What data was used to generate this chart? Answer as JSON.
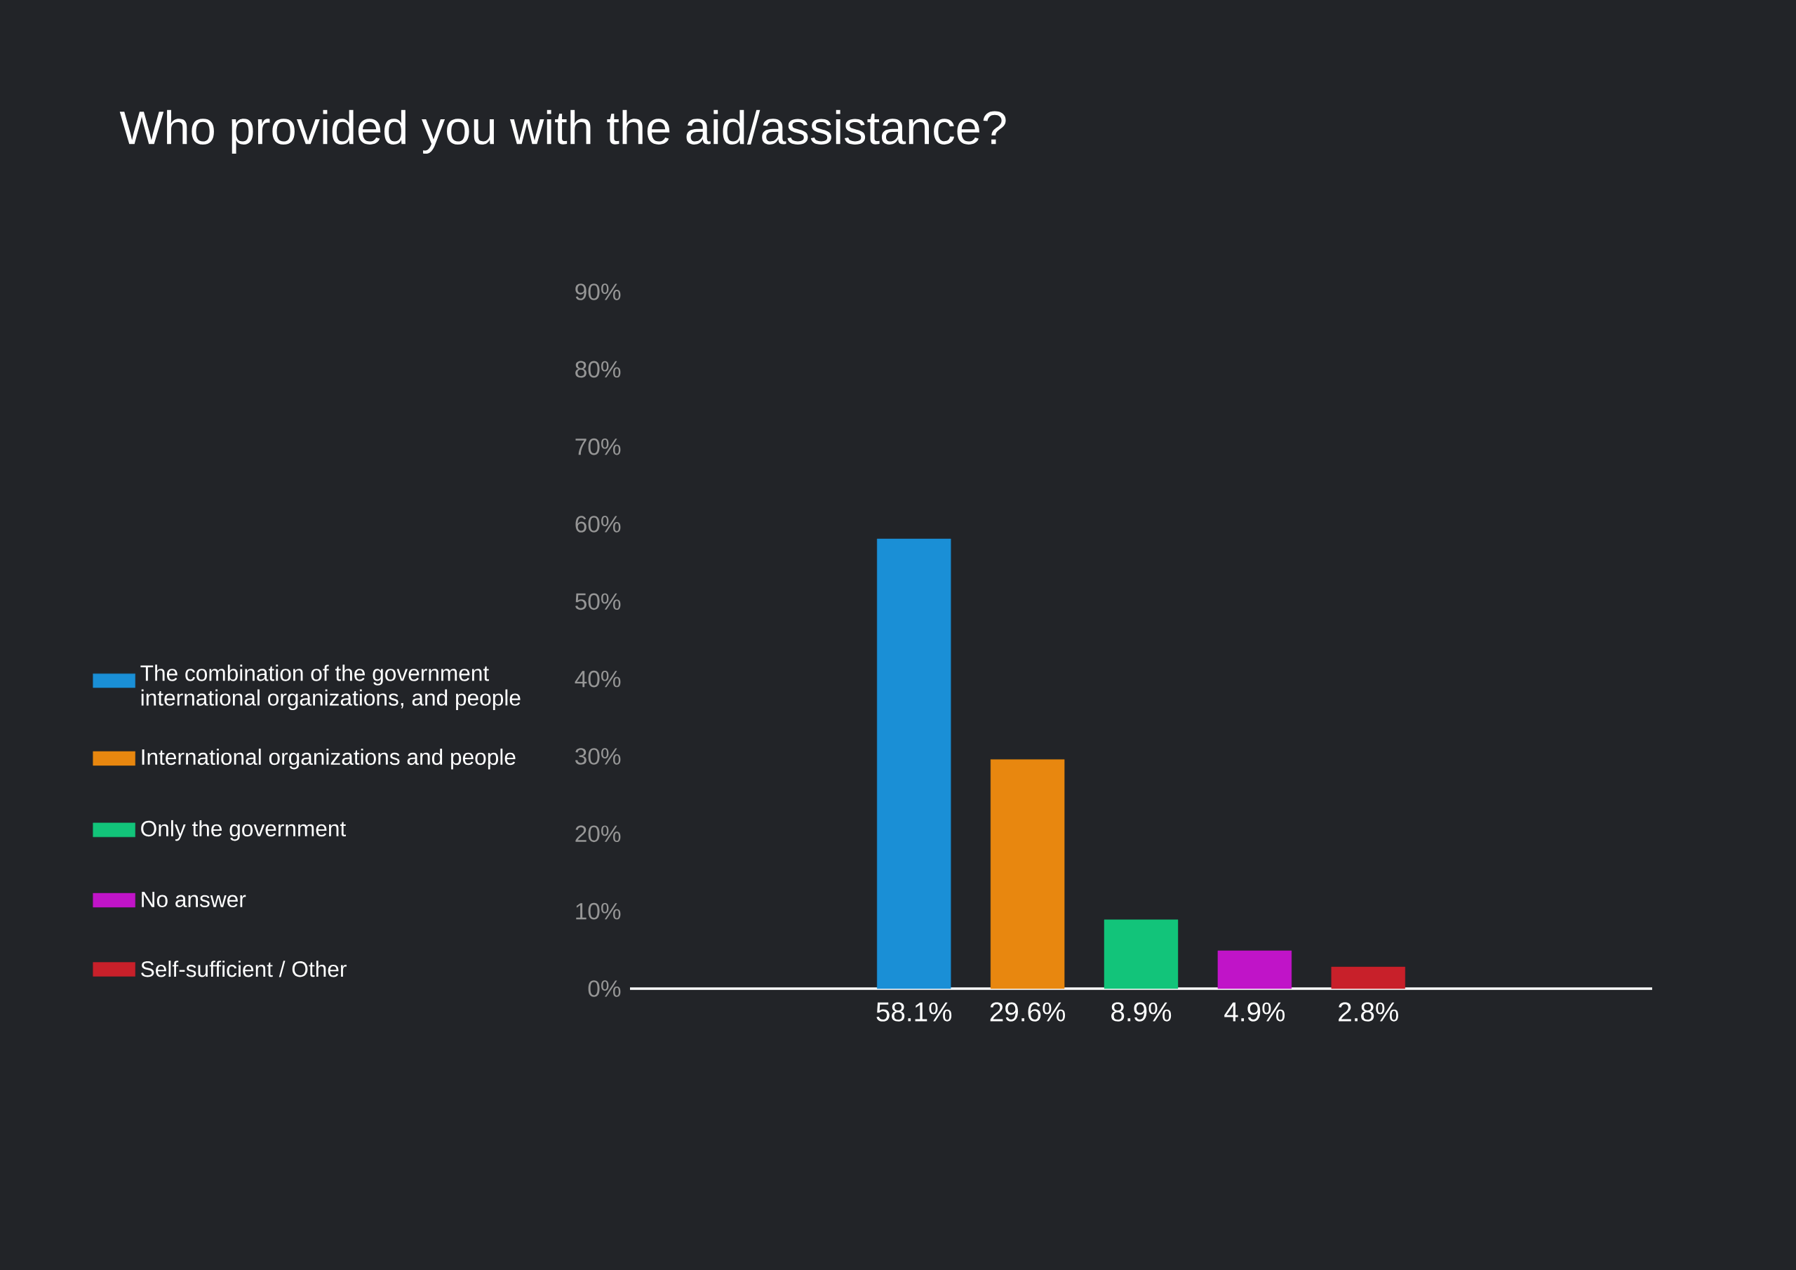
{
  "chart_data": {
    "type": "bar",
    "title": "Who provided you with the aid/assistance?",
    "categories": [
      null,
      null,
      null,
      null,
      null,
      null,
      null,
      null,
      null
    ],
    "series": [
      {
        "name": "The combination of the government international organizations, and people",
        "color": "#1a8fd6",
        "values": [
          null,
          null,
          58.1,
          null,
          null,
          null,
          null,
          null,
          null
        ],
        "value_labels": [
          null,
          null,
          "58.1%",
          null,
          null,
          null,
          null,
          null,
          null
        ]
      },
      {
        "name": "International organizations and people",
        "color": "#e8870f",
        "values": [
          null,
          null,
          null,
          29.6,
          null,
          null,
          null,
          null,
          null
        ],
        "value_labels": [
          null,
          null,
          null,
          "29.6%",
          null,
          null,
          null,
          null,
          null
        ]
      },
      {
        "name": "Only the government",
        "color": "#12c47a",
        "values": [
          null,
          null,
          null,
          null,
          8.9,
          null,
          null,
          null,
          null
        ],
        "value_labels": [
          null,
          null,
          null,
          null,
          "8.9%",
          null,
          null,
          null,
          null
        ]
      },
      {
        "name": "No answer",
        "color": "#c014c8",
        "values": [
          null,
          null,
          null,
          null,
          null,
          4.9,
          null,
          null,
          null
        ],
        "value_labels": [
          null,
          null,
          null,
          null,
          null,
          "4.9%",
          null,
          null,
          null
        ]
      },
      {
        "name": "Self-sufficient / Other",
        "color": "#c8202a",
        "values": [
          null,
          null,
          null,
          null,
          null,
          null,
          2.8,
          null,
          null
        ],
        "value_labels": [
          null,
          null,
          null,
          null,
          null,
          null,
          "2.8%",
          null,
          null
        ]
      }
    ],
    "ylim": [
      0,
      90
    ],
    "yticks": [
      {
        "value": 0,
        "label": "0%"
      },
      {
        "value": 10,
        "label": "10%"
      },
      {
        "value": 20,
        "label": "20%"
      },
      {
        "value": 30,
        "label": "30%"
      },
      {
        "value": 40,
        "label": "40%"
      },
      {
        "value": 50,
        "label": "50%"
      },
      {
        "value": 60,
        "label": "60%"
      },
      {
        "value": 70,
        "label": "70%"
      },
      {
        "value": 80,
        "label": "80%"
      },
      {
        "value": 90,
        "label": "90%"
      }
    ],
    "legend": "left"
  }
}
